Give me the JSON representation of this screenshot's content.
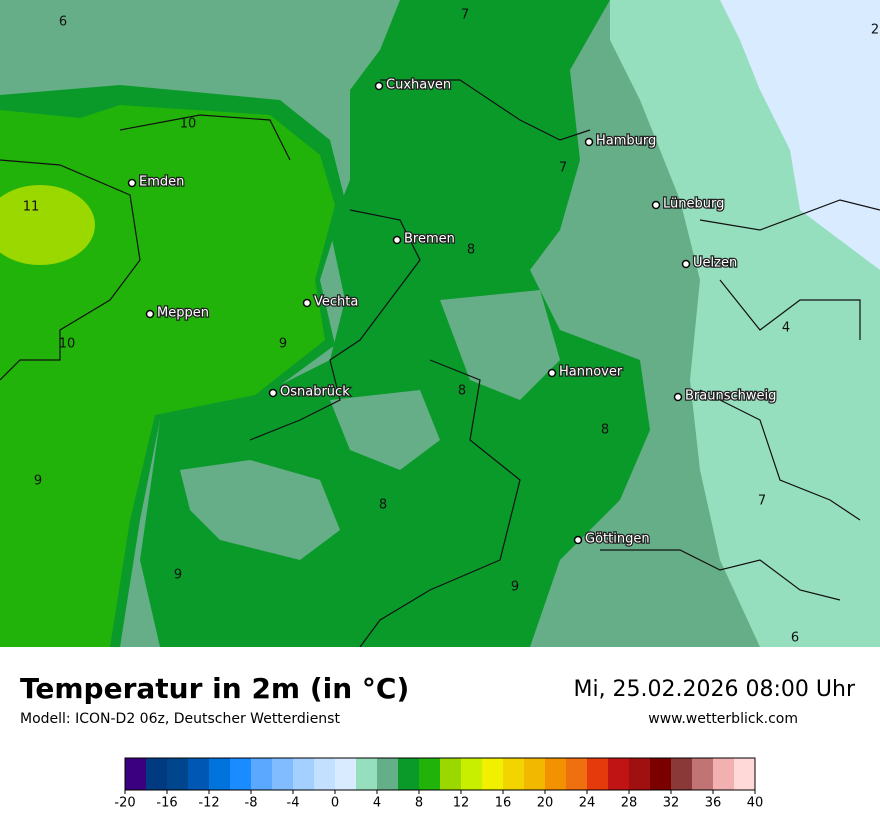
{
  "header": {
    "title": "Temperatur in 2m (in °C)",
    "subtitle": "Modell: ICON-D2 06z, Deutscher Wetterdienst",
    "datetime": "Mi, 25.02.2026 08:00 Uhr",
    "website": "www.wetterblick.com"
  },
  "cities": [
    "Cuxhaven",
    "Hamburg",
    "Emden",
    "Lüneburg",
    "Bremen",
    "Uelzen",
    "Vechta",
    "Meppen",
    "Hannover",
    "Braunschweig",
    "Osnabrück",
    "Göttingen"
  ],
  "isotherm_labels": [
    6,
    7,
    2,
    10,
    7,
    11,
    8,
    4,
    10,
    9,
    8,
    8,
    9,
    7,
    8,
    9,
    9,
    6
  ],
  "colorbar": {
    "range": [
      -20,
      40
    ],
    "ticks": [
      -20,
      -16,
      -12,
      -8,
      -4,
      0,
      4,
      8,
      12,
      16,
      20,
      24,
      28,
      32,
      36,
      40
    ],
    "colors": [
      "#3a0080",
      "#003a80",
      "#00468c",
      "#0058b4",
      "#0074dc",
      "#1a8cff",
      "#5aa8ff",
      "#80bcff",
      "#a4d0ff",
      "#c4e0ff",
      "#d8ebff",
      "#96dfbe",
      "#64ae88",
      "#0a9a2a",
      "#22b30a",
      "#9ad800",
      "#c8ee00",
      "#f0f000",
      "#f2d400",
      "#f2b800",
      "#f29200",
      "#ee7010",
      "#e43a0c",
      "#c01414",
      "#a01010",
      "#7a0000",
      "#8b3838",
      "#c07474",
      "#f2b0b0",
      "#ffd8d8"
    ]
  }
}
